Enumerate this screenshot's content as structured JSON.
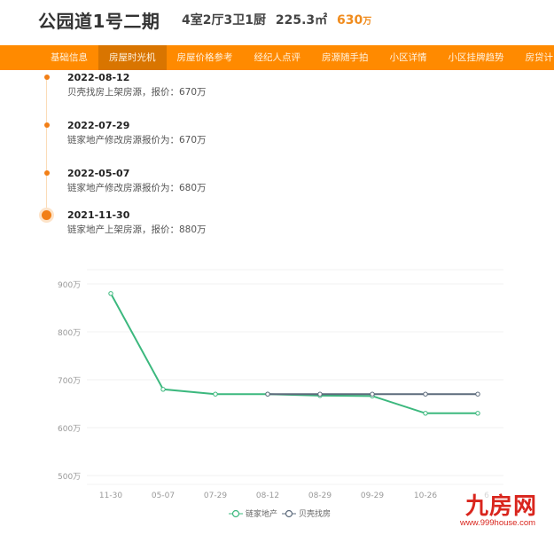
{
  "header": {
    "title": "公园道1号二期",
    "layout": "4室2厅3卫1厨",
    "area": "225.3㎡",
    "price_value": "630",
    "price_unit": "万"
  },
  "nav": {
    "items": [
      {
        "label": "基础信息",
        "active": false
      },
      {
        "label": "房屋时光机",
        "active": true
      },
      {
        "label": "房屋价格参考",
        "active": false
      },
      {
        "label": "经纪人点评",
        "active": false
      },
      {
        "label": "房源随手拍",
        "active": false
      },
      {
        "label": "小区详情",
        "active": false
      },
      {
        "label": "小区挂牌趋势",
        "active": false
      },
      {
        "label": "房贷计",
        "active": false
      }
    ]
  },
  "timeline": {
    "items": [
      {
        "date": "2022-08-12",
        "desc": "贝壳找房上架房源，报价：670万"
      },
      {
        "date": "2022-07-29",
        "desc": "链家地产修改房源报价为：670万"
      },
      {
        "date": "2022-05-07",
        "desc": "链家地产修改房源报价为：680万"
      },
      {
        "date": "2021-11-30",
        "desc": "链家地产上架房源，报价：880万"
      }
    ]
  },
  "colors": {
    "nav_bg": "#ff8a00",
    "nav_active": "#d97500",
    "accent_price": "#f08c1e",
    "timeline_dot": "#f27f16",
    "series_lianjia": "#3cb87e",
    "series_beike": "#5d6b7c",
    "watermark": "#d9251d"
  },
  "chart_data": {
    "type": "line",
    "title": "",
    "xlabel": "",
    "ylabel": "",
    "categories": [
      "11-30",
      "05-07",
      "07-29",
      "08-12",
      "08-29",
      "09-29",
      "10-26",
      "6"
    ],
    "y_ticks": [
      "500万",
      "600万",
      "700万",
      "800万",
      "900万"
    ],
    "ylim": [
      500,
      900
    ],
    "grid": true,
    "legend_position": "bottom",
    "series": [
      {
        "name": "链家地产",
        "color": "#3cb87e",
        "values": [
          880,
          680,
          670,
          670,
          667,
          666,
          630,
          630
        ]
      },
      {
        "name": "贝壳找房",
        "color": "#5d6b7c",
        "values": [
          null,
          null,
          null,
          670,
          670,
          670,
          670,
          670
        ]
      }
    ]
  },
  "watermark": {
    "logo": "九房网",
    "url": "www.999house.com"
  }
}
